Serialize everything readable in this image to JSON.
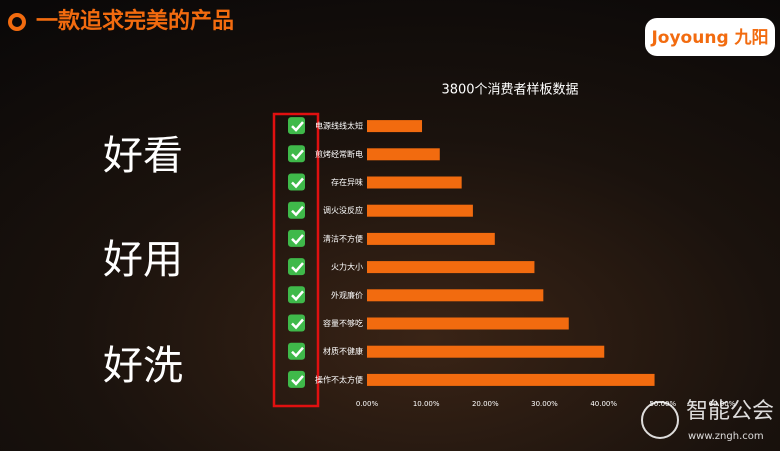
{
  "header": {
    "title": "一款追求完美的产品",
    "logo": "Joyoung 九阳"
  },
  "labels": [
    "好看",
    "好用",
    "好洗"
  ],
  "watermark": {
    "name": "智能公会",
    "url": "www.zngh.com"
  },
  "chart_data": {
    "type": "bar",
    "orientation": "horizontal",
    "title": "3800个消费者样板数据",
    "categories": [
      "电源线线太短",
      "煎烤经常断电",
      "存在异味",
      "调火没反应",
      "清洁不方便",
      "火力大小",
      "外观廉价",
      "容量不够吃",
      "材质不健康",
      "操作不太方便"
    ],
    "values": [
      9.3,
      12.3,
      16.0,
      17.9,
      21.6,
      28.3,
      29.8,
      34.1,
      40.1,
      48.6
    ],
    "color": "#f26b0f",
    "xlim": [
      0,
      60
    ],
    "xticks": [
      {
        "value": 0,
        "label": "0.00%"
      },
      {
        "value": 10,
        "label": "10.00%"
      },
      {
        "value": 20,
        "label": "20.00%"
      },
      {
        "value": 30,
        "label": "30.00%"
      },
      {
        "value": 40,
        "label": "40.00%"
      },
      {
        "value": 50,
        "label": "50.00%"
      },
      {
        "value": 60,
        "label": "60.00%"
      }
    ],
    "grid": false
  }
}
